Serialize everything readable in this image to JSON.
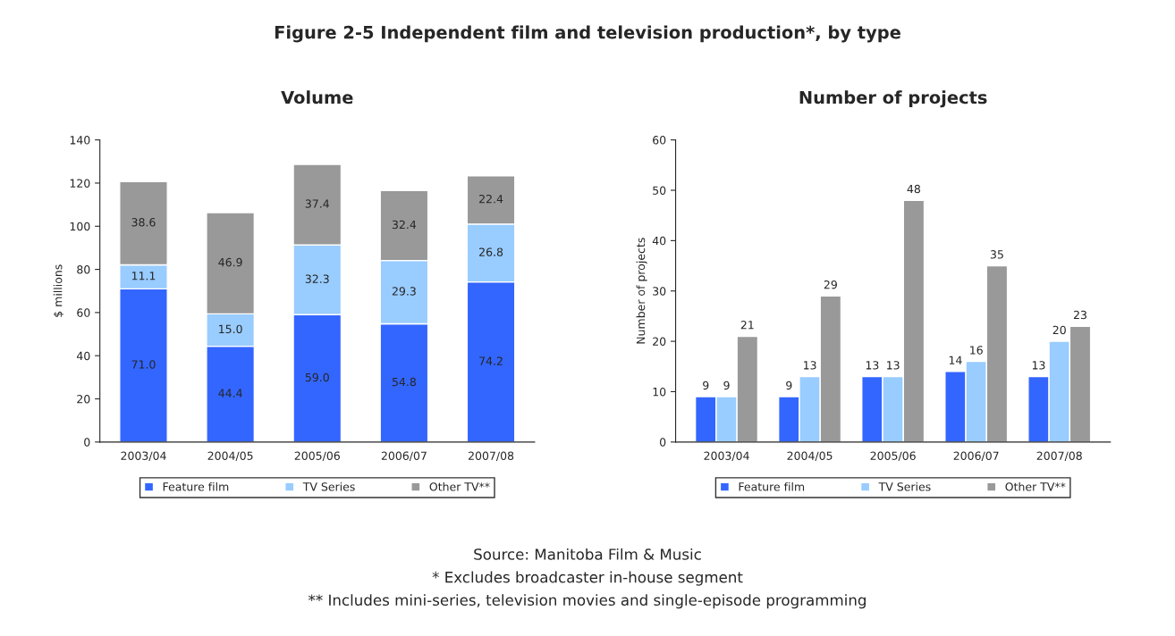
{
  "chart_data": [
    {
      "type": "bar",
      "title": "Figure 2-5 Independent film and television production*, by type",
      "subtitle": "Volume",
      "ylabel": "$ millions",
      "stacked": true,
      "legend": "bottom",
      "grid": false,
      "categories": [
        "2003/04",
        "2004/05",
        "2005/06",
        "2006/07",
        "2007/08"
      ],
      "ylim": [
        0,
        140
      ],
      "yticks": [
        0,
        20,
        40,
        60,
        80,
        100,
        120,
        140
      ],
      "series": [
        {
          "name": "Feature film",
          "color": "#3366ff",
          "values": [
            71.0,
            44.4,
            59.0,
            54.8,
            74.2
          ],
          "value_labels": [
            "71.0",
            "44.4",
            "59.0",
            "54.8",
            "74.2"
          ]
        },
        {
          "name": "TV Series",
          "color": "#99ccff",
          "values": [
            11.1,
            15.0,
            32.3,
            29.3,
            26.8
          ],
          "value_labels": [
            "11.1",
            "15.0",
            "32.3",
            "29.3",
            "26.8"
          ]
        },
        {
          "name": "Other TV**",
          "color": "#999999",
          "values": [
            38.6,
            46.9,
            37.4,
            32.4,
            22.4
          ],
          "value_labels": [
            "38.6",
            "46.9",
            "37.4",
            "32.4",
            "22.4"
          ]
        }
      ],
      "annotations": [
        "Source: Manitoba Film & Music",
        "* Excludes broadcaster in-house segment",
        "** Includes mini-series, television movies and single-episode programming"
      ]
    },
    {
      "type": "bar",
      "title": "Number of projects",
      "ylabel": "Number of projects",
      "data_labels": true,
      "legend": "bottom",
      "grid": false,
      "categories": [
        "2003/04",
        "2004/05",
        "2005/06",
        "2006/07",
        "2007/08"
      ],
      "ylim": [
        0,
        60
      ],
      "yticks": [
        0,
        10,
        20,
        30,
        40,
        50,
        60
      ],
      "series": [
        {
          "name": "Feature film",
          "color": "#3366ff",
          "values": [
            9,
            9,
            13,
            14,
            13
          ]
        },
        {
          "name": "TV Series",
          "color": "#99ccff",
          "values": [
            9,
            13,
            13,
            16,
            20
          ]
        },
        {
          "name": "Other TV**",
          "color": "#999999",
          "values": [
            21,
            29,
            48,
            35,
            23
          ]
        }
      ]
    }
  ]
}
